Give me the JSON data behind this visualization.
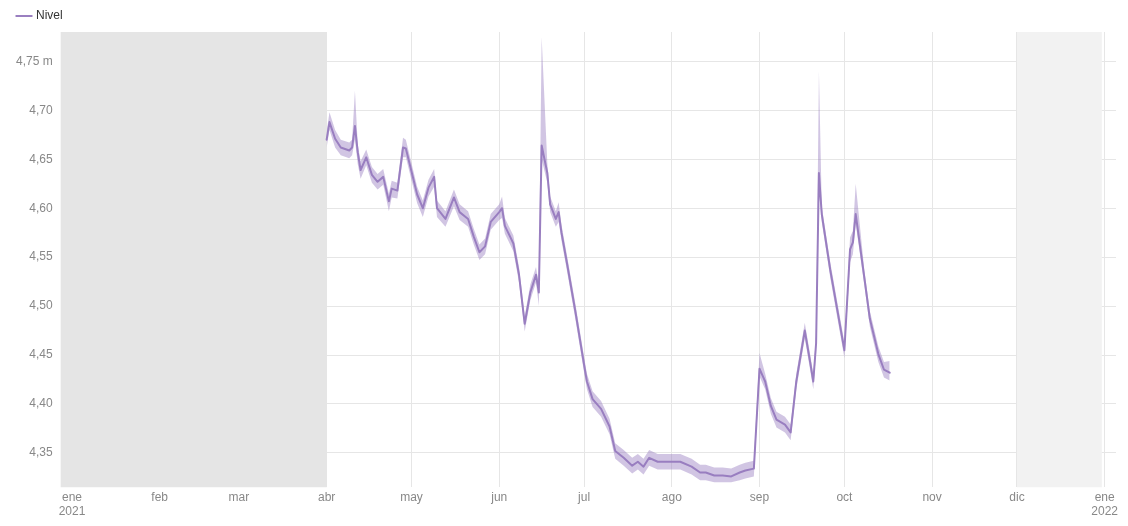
{
  "chart_data": {
    "type": "line",
    "x": [
      "2021-04-01",
      "2021-04-02",
      "2021-04-04",
      "2021-04-06",
      "2021-04-09",
      "2021-04-10",
      "2021-04-11",
      "2021-04-12",
      "2021-04-13",
      "2021-04-15",
      "2021-04-17",
      "2021-04-19",
      "2021-04-21",
      "2021-04-23",
      "2021-04-24",
      "2021-04-26",
      "2021-04-28",
      "2021-04-29",
      "2021-05-03",
      "2021-05-05",
      "2021-05-07",
      "2021-05-09",
      "2021-05-10",
      "2021-05-13",
      "2021-05-16",
      "2021-05-18",
      "2021-05-21",
      "2021-05-23",
      "2021-05-25",
      "2021-05-27",
      "2021-05-29",
      "2021-06-01",
      "2021-06-02",
      "2021-06-03",
      "2021-06-06",
      "2021-06-08",
      "2021-06-10",
      "2021-06-12",
      "2021-06-14",
      "2021-06-15",
      "2021-06-16",
      "2021-06-18",
      "2021-06-19",
      "2021-06-21",
      "2021-06-22",
      "2021-06-23",
      "2021-06-25",
      "2021-06-28",
      "2021-07-01",
      "2021-07-02",
      "2021-07-04",
      "2021-07-07",
      "2021-07-10",
      "2021-07-12",
      "2021-07-15",
      "2021-07-18",
      "2021-07-20",
      "2021-07-22",
      "2021-07-24",
      "2021-07-27",
      "2021-08-01",
      "2021-08-04",
      "2021-08-08",
      "2021-08-11",
      "2021-08-13",
      "2021-08-16",
      "2021-08-19",
      "2021-08-22",
      "2021-08-25",
      "2021-08-27",
      "2021-08-30",
      "2021-09-01",
      "2021-09-03",
      "2021-09-05",
      "2021-09-07",
      "2021-09-10",
      "2021-09-12",
      "2021-09-14",
      "2021-09-17",
      "2021-09-19",
      "2021-09-20",
      "2021-09-21",
      "2021-09-22",
      "2021-09-23",
      "2021-09-26",
      "2021-10-01",
      "2021-10-03",
      "2021-10-04",
      "2021-10-05",
      "2021-10-08",
      "2021-10-10",
      "2021-10-13",
      "2021-10-15",
      "2021-10-17"
    ],
    "series": [
      {
        "name": "Nivel",
        "color": "#9a7fc0",
        "values": [
          4.67,
          4.688,
          4.671,
          4.662,
          4.659,
          4.662,
          4.684,
          4.657,
          4.639,
          4.652,
          4.634,
          4.627,
          4.632,
          4.607,
          4.62,
          4.618,
          4.662,
          4.661,
          4.614,
          4.6,
          4.621,
          4.632,
          4.6,
          4.589,
          4.611,
          4.596,
          4.589,
          4.571,
          4.555,
          4.561,
          4.586,
          4.596,
          4.6,
          4.582,
          4.564,
          4.532,
          4.482,
          4.514,
          4.532,
          4.514,
          4.664,
          4.636,
          4.604,
          4.589,
          4.596,
          4.575,
          4.543,
          4.493,
          4.44,
          4.423,
          4.405,
          4.395,
          4.377,
          4.352,
          4.345,
          4.337,
          4.341,
          4.336,
          4.345,
          4.341,
          4.341,
          4.341,
          4.336,
          4.33,
          4.33,
          4.327,
          4.327,
          4.326,
          4.33,
          4.332,
          4.334,
          4.436,
          4.423,
          4.398,
          4.384,
          4.379,
          4.371,
          4.423,
          4.475,
          4.441,
          4.423,
          4.462,
          4.636,
          4.594,
          4.537,
          4.455,
          4.558,
          4.565,
          4.594,
          4.53,
          4.487,
          4.451,
          4.435,
          4.432
        ],
        "lower": [
          4.662,
          4.68,
          4.662,
          4.654,
          4.651,
          4.654,
          4.67,
          4.645,
          4.63,
          4.644,
          4.626,
          4.619,
          4.624,
          4.597,
          4.611,
          4.61,
          4.652,
          4.652,
          4.605,
          4.591,
          4.612,
          4.622,
          4.591,
          4.581,
          4.602,
          4.588,
          4.581,
          4.563,
          4.547,
          4.553,
          4.578,
          4.588,
          4.59,
          4.574,
          4.556,
          4.524,
          4.474,
          4.506,
          4.524,
          4.5,
          4.65,
          4.626,
          4.596,
          4.581,
          4.586,
          4.567,
          4.535,
          4.485,
          4.432,
          4.415,
          4.397,
          4.387,
          4.369,
          4.344,
          4.337,
          4.329,
          4.333,
          4.328,
          4.337,
          4.333,
          4.333,
          4.333,
          4.328,
          4.322,
          4.322,
          4.32,
          4.32,
          4.32,
          4.322,
          4.324,
          4.326,
          4.428,
          4.415,
          4.39,
          4.376,
          4.371,
          4.363,
          4.415,
          4.467,
          4.433,
          4.415,
          4.452,
          4.62,
          4.586,
          4.529,
          4.447,
          4.545,
          4.553,
          4.584,
          4.522,
          4.479,
          4.443,
          4.427,
          4.424
        ],
        "upper": [
          4.678,
          4.698,
          4.68,
          4.67,
          4.667,
          4.67,
          4.72,
          4.665,
          4.648,
          4.66,
          4.642,
          4.635,
          4.64,
          4.615,
          4.628,
          4.626,
          4.672,
          4.67,
          4.622,
          4.608,
          4.629,
          4.64,
          4.608,
          4.597,
          4.619,
          4.604,
          4.597,
          4.579,
          4.563,
          4.569,
          4.594,
          4.604,
          4.612,
          4.59,
          4.572,
          4.54,
          4.49,
          4.522,
          4.54,
          4.522,
          4.775,
          4.646,
          4.612,
          4.597,
          4.606,
          4.583,
          4.551,
          4.501,
          4.448,
          4.431,
          4.413,
          4.403,
          4.385,
          4.36,
          4.353,
          4.345,
          4.349,
          4.344,
          4.353,
          4.349,
          4.349,
          4.349,
          4.344,
          4.338,
          4.338,
          4.335,
          4.335,
          4.334,
          4.338,
          4.34,
          4.342,
          4.452,
          4.431,
          4.406,
          4.392,
          4.387,
          4.379,
          4.431,
          4.483,
          4.449,
          4.431,
          4.47,
          4.74,
          4.602,
          4.545,
          4.463,
          4.57,
          4.577,
          4.625,
          4.538,
          4.495,
          4.459,
          4.443,
          4.444
        ]
      }
    ],
    "xlim": [
      "2020-12-28",
      "2022-01-05"
    ],
    "xticks": [
      {
        "value": "2021-01-01",
        "label": "ene\n2021"
      },
      {
        "value": "2021-02-01",
        "label": "feb"
      },
      {
        "value": "2021-03-01",
        "label": "mar"
      },
      {
        "value": "2021-04-01",
        "label": "abr"
      },
      {
        "value": "2021-05-01",
        "label": "may"
      },
      {
        "value": "2021-06-01",
        "label": "jun"
      },
      {
        "value": "2021-07-01",
        "label": "jul"
      },
      {
        "value": "2021-08-01",
        "label": "ago"
      },
      {
        "value": "2021-09-01",
        "label": "sep"
      },
      {
        "value": "2021-10-01",
        "label": "oct"
      },
      {
        "value": "2021-11-01",
        "label": "nov"
      },
      {
        "value": "2021-12-01",
        "label": "dic"
      },
      {
        "value": "2022-01-01",
        "label": "ene\n2022"
      }
    ],
    "ylim": [
      4.315,
      4.78
    ],
    "yticks": [
      {
        "value": 4.35,
        "label": "4,35"
      },
      {
        "value": 4.4,
        "label": "4,40"
      },
      {
        "value": 4.45,
        "label": "4,45"
      },
      {
        "value": 4.5,
        "label": "4,50"
      },
      {
        "value": 4.55,
        "label": "4,55"
      },
      {
        "value": 4.6,
        "label": "4,60"
      },
      {
        "value": 4.65,
        "label": "4,65"
      },
      {
        "value": 4.7,
        "label": "4,70"
      },
      {
        "value": 4.75,
        "label": "4,75 m"
      }
    ],
    "bands": [
      {
        "axis": "x",
        "from": "2020-12-28",
        "to": "2021-04-01",
        "color": "#e5e5e5"
      },
      {
        "axis": "x",
        "from": "2021-12-01",
        "to": "2021-12-31",
        "color": "#f2f2f2"
      }
    ],
    "grid": true,
    "legend": "top left",
    "marker": "none",
    "line_style": "solid"
  }
}
